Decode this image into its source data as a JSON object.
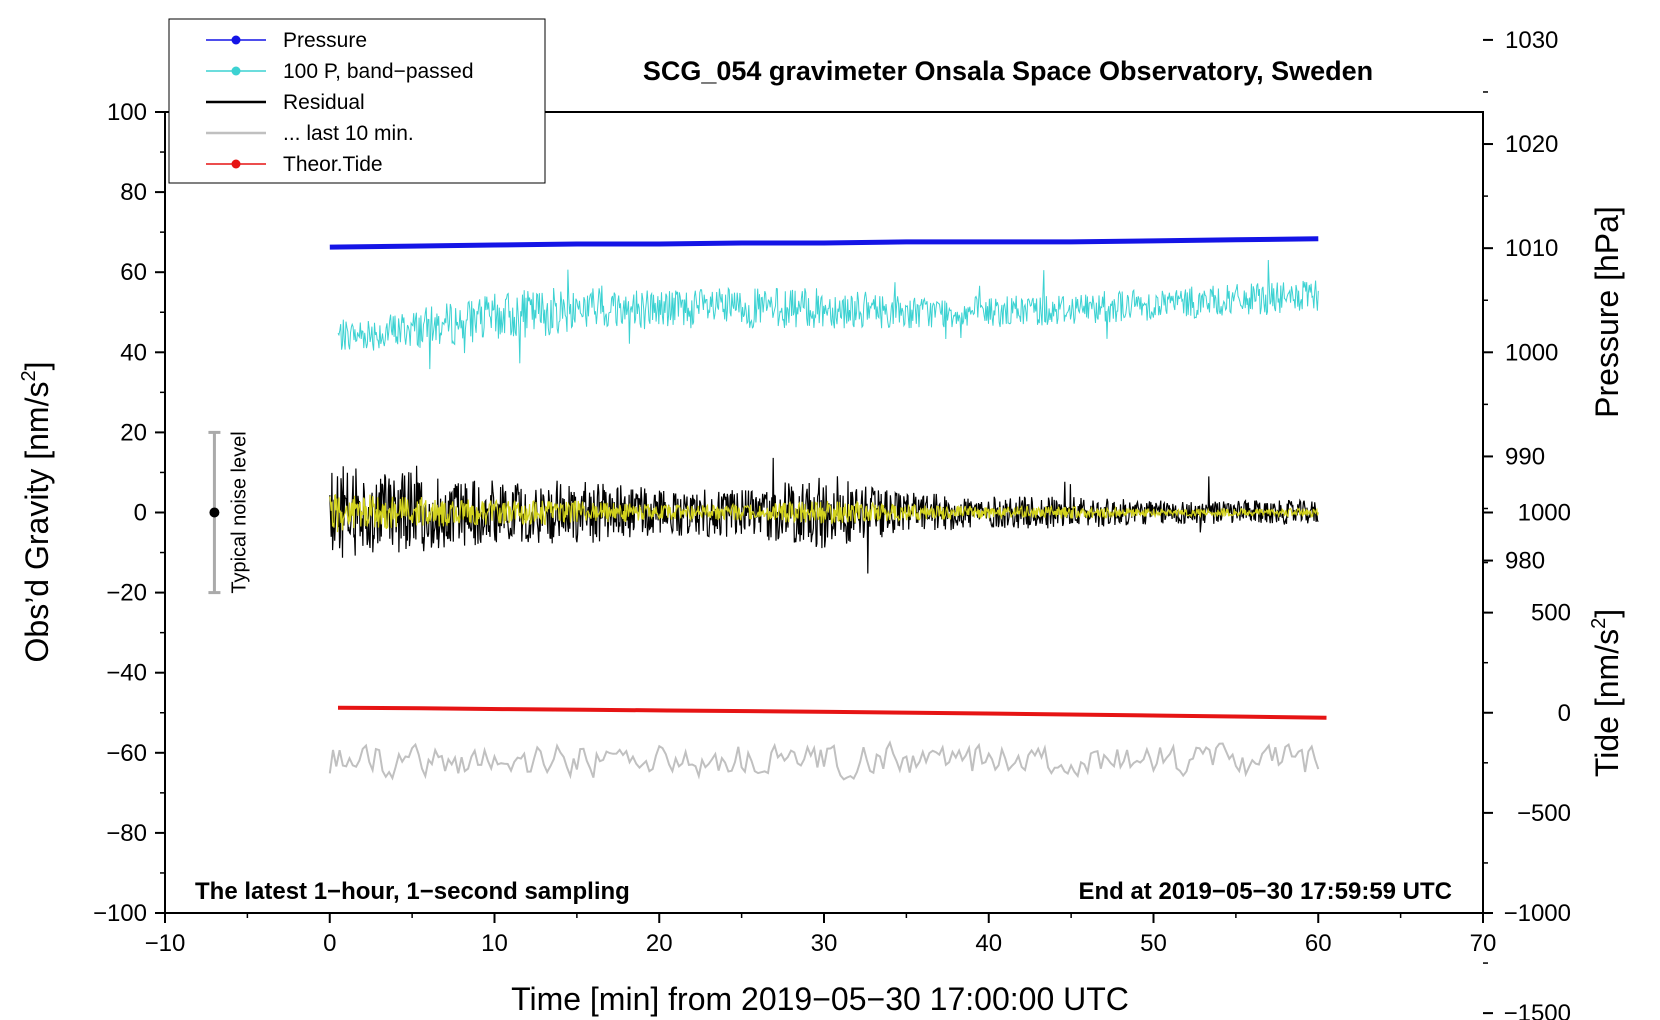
{
  "chart_data": {
    "type": "line",
    "title": "SCG_054 gravimeter Onsala Space Observatory, Sweden",
    "xlabel": "Time [min] from 2019−05−30 17:00:00 UTC",
    "ylabel_left": "Obs’d Gravity [nm/s²]",
    "ylabel_left_main": "Obs’d Gravity [nm/s",
    "ylabel_left_sup": "2",
    "ylabel_left_close": "]",
    "ylabel_right_pressure": "Pressure [hPa]",
    "ylabel_right_tide": "Tide [nm/s²]",
    "ylabel_right_tide_main": "Tide [nm/s",
    "ylabel_right_tide_sup": "2",
    "ylabel_right_tide_close": "]",
    "footer_left": "The latest 1−hour, 1−second sampling",
    "footer_right": "End at 2019−05−30 17:59:59 UTC",
    "noise_label": "Typical noise level",
    "noise_range": [
      -20,
      20
    ],
    "noise_x": -7,
    "xlim": [
      -10,
      70
    ],
    "ylim": [
      -100,
      100
    ],
    "pressure_axis": {
      "ticks": [
        980,
        990,
        1000,
        1010,
        1020,
        1030
      ],
      "gravity_at_1000": 40,
      "gravity_per_hPa": 2.6
    },
    "tide_axis": {
      "ticks": [
        -1500,
        -1000,
        -500,
        0,
        500,
        1000
      ],
      "gravity_at_0": -50,
      "gravity_per_unit": 0.05
    },
    "x_ticks": [
      -10,
      0,
      10,
      20,
      30,
      40,
      50,
      60,
      70
    ],
    "x_tick_labels": [
      "−10",
      "0",
      "10",
      "20",
      "30",
      "40",
      "50",
      "60",
      "70"
    ],
    "y_ticks": [
      -100,
      -80,
      -60,
      -40,
      -20,
      0,
      20,
      40,
      60,
      80,
      100
    ],
    "y_tick_labels": [
      "−100",
      "−80",
      "−60",
      "−40",
      "−20",
      "0",
      "20",
      "40",
      "60",
      "80",
      "100"
    ],
    "pressure_tick_labels": [
      "980",
      "990",
      "1000",
      "1010",
      "1020",
      "1030"
    ],
    "tide_tick_labels": [
      "−1500",
      "−1000",
      "−500",
      "0",
      "500",
      "1000"
    ],
    "legend": [
      {
        "label": "Pressure",
        "color": "#1414e6",
        "marker": true
      },
      {
        "label": "100 P, band−passed",
        "color": "#3cd2d2",
        "marker": true
      },
      {
        "label": "Residual",
        "color": "#000000",
        "marker": false
      },
      {
        "label": "... last 10 min.",
        "color": "#c0c0c0",
        "marker": false
      },
      {
        "label": "Theor.Tide",
        "color": "#e61414",
        "marker": true
      }
    ],
    "series": [
      {
        "name": "Pressure",
        "axis": "pressure",
        "color": "#1414e6",
        "x_range": [
          0,
          60
        ],
        "values": [
          1010.1,
          1010.2,
          1010.3,
          1010.4,
          1010.4,
          1010.5,
          1010.5,
          1010.6,
          1010.6,
          1010.6,
          1010.7,
          1010.8,
          1010.9
        ]
      },
      {
        "name": "100 P, band−passed",
        "axis": "gravity",
        "color": "#3cd2d2",
        "x_range": [
          0.5,
          60
        ],
        "baseline": [
          44,
          46,
          49,
          51,
          51,
          51,
          51,
          50,
          50,
          51,
          52,
          53,
          54
        ],
        "amplitude": [
          4,
          5,
          6,
          6,
          5,
          5,
          5,
          4,
          4,
          4,
          4,
          4,
          4
        ]
      },
      {
        "name": "Residual",
        "axis": "gravity",
        "color": "#000000",
        "x_range": [
          0,
          60
        ],
        "amplitude": [
          12,
          10,
          8,
          8,
          6,
          6,
          9,
          5,
          4,
          4,
          3,
          3,
          3
        ]
      },
      {
        "name": "Residual (filtered)",
        "axis": "gravity",
        "color": "#d2d21e",
        "x_range": [
          0,
          60
        ],
        "amplitude": [
          5,
          4,
          3,
          3,
          2,
          2,
          3,
          2,
          1.5,
          1.5,
          1,
          1,
          1
        ]
      },
      {
        "name": "... last 10 min.",
        "axis": "gravity",
        "color": "#c0c0c0",
        "x_range": [
          0,
          60
        ],
        "baseline": -62,
        "amplitude": 4
      },
      {
        "name": "Theor.Tide",
        "axis": "tide",
        "color": "#e61414",
        "x_range": [
          0.5,
          60.5
        ],
        "values": [
          25,
          22,
          18,
          15,
          11,
          8,
          4,
          0,
          -4,
          -9,
          -14,
          -19,
          -25
        ]
      }
    ]
  }
}
